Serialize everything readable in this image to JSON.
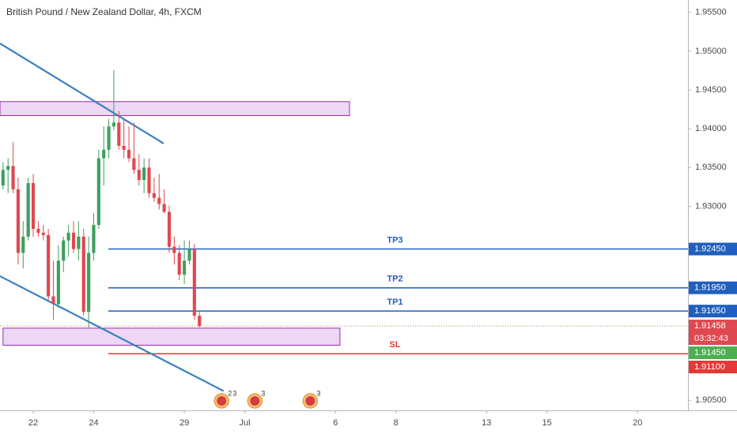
{
  "chart_data": {
    "type": "candlestick",
    "title": "British Pound / New Zealand Dollar, 4h, FXCM",
    "x": [
      -6,
      -5,
      -4,
      -3,
      -2,
      -1,
      0,
      1,
      2,
      3,
      4,
      5,
      6,
      7,
      8,
      9,
      10,
      11,
      12,
      13,
      14,
      15,
      16,
      17,
      18,
      19,
      20,
      21,
      22,
      23,
      24,
      25,
      26,
      27,
      28,
      29,
      30,
      31,
      32,
      33
    ],
    "open": [
      1.9327,
      1.9347,
      1.9352,
      1.9322,
      1.924,
      1.9261,
      1.933,
      1.9271,
      1.9266,
      1.9263,
      1.9184,
      1.9174,
      1.923,
      1.9256,
      1.9266,
      1.9245,
      1.9261,
      1.9164,
      1.924,
      1.9276,
      1.9362,
      1.9373,
      1.9403,
      1.9408,
      1.9378,
      1.9373,
      1.9362,
      1.9347,
      1.9334,
      1.935,
      1.9317,
      1.9311,
      1.9303,
      1.9293,
      1.9248,
      1.924,
      1.9212,
      1.923,
      1.9245,
      1.9159
    ],
    "high": [
      1.9357,
      1.9362,
      1.9383,
      1.9337,
      1.9281,
      1.9337,
      1.9342,
      1.9281,
      1.9276,
      1.9271,
      1.923,
      1.925,
      1.9261,
      1.9276,
      1.9281,
      1.9281,
      1.9271,
      1.9261,
      1.9291,
      1.9373,
      1.9403,
      1.9413,
      1.9476,
      1.9423,
      1.9413,
      1.9403,
      1.9408,
      1.9367,
      1.9362,
      1.9362,
      1.9337,
      1.9342,
      1.9322,
      1.9301,
      1.9261,
      1.925,
      1.9256,
      1.9256,
      1.9252,
      1.9164
    ],
    "low": [
      1.9322,
      1.9317,
      1.9317,
      1.9225,
      1.922,
      1.9256,
      1.9261,
      1.9261,
      1.9256,
      1.9179,
      1.9154,
      1.9169,
      1.9215,
      1.9235,
      1.924,
      1.923,
      1.9159,
      1.9144,
      1.923,
      1.9271,
      1.9327,
      1.9362,
      1.9398,
      1.9373,
      1.9362,
      1.9357,
      1.9342,
      1.9327,
      1.9317,
      1.9311,
      1.9306,
      1.9296,
      1.9291,
      1.924,
      1.9225,
      1.9205,
      1.92,
      1.9225,
      1.9154,
      1.9144
    ],
    "close": [
      1.9347,
      1.9352,
      1.9322,
      1.924,
      1.9261,
      1.933,
      1.9271,
      1.9266,
      1.9263,
      1.9184,
      1.9174,
      1.923,
      1.9256,
      1.9266,
      1.9245,
      1.9261,
      1.9164,
      1.924,
      1.9276,
      1.9362,
      1.9373,
      1.9403,
      1.9408,
      1.9378,
      1.9373,
      1.9362,
      1.9347,
      1.9334,
      1.935,
      1.9317,
      1.9311,
      1.9303,
      1.9293,
      1.9248,
      1.924,
      1.9212,
      1.923,
      1.9245,
      1.9159,
      1.91458
    ],
    "up_color": "#3f9f5d",
    "down_color": "#e0484f",
    "xlim": [
      -6.6,
      130
    ],
    "ylim": [
      1.9037,
      1.9566
    ],
    "xticks": [
      {
        "value": 0,
        "label": "22"
      },
      {
        "value": 12,
        "label": "24"
      },
      {
        "value": 30,
        "label": "29"
      },
      {
        "value": 42,
        "label": "Jul"
      },
      {
        "value": 60,
        "label": "6"
      },
      {
        "value": 72,
        "label": "8"
      },
      {
        "value": 90,
        "label": "13"
      },
      {
        "value": 102,
        "label": "15"
      },
      {
        "value": 120,
        "label": "20"
      }
    ],
    "yticks": [
      {
        "value": 1.955,
        "label": "1.95500"
      },
      {
        "value": 1.95,
        "label": "1.95000"
      },
      {
        "value": 1.945,
        "label": "1.94500"
      },
      {
        "value": 1.94,
        "label": "1.94000"
      },
      {
        "value": 1.935,
        "label": "1.93500"
      },
      {
        "value": 1.93,
        "label": "1.93000"
      },
      {
        "value": 1.905,
        "label": "1.90500"
      }
    ],
    "grid": false,
    "hlines": [
      {
        "name": "TP3",
        "value": 1.9245,
        "axis_label": "1.92450",
        "color": "#1f5fbf",
        "start": 14.9
      },
      {
        "name": "TP2",
        "value": 1.9195,
        "axis_label": "1.91950",
        "color": "#1f5fbf",
        "start": 14.9
      },
      {
        "name": "TP1",
        "value": 1.9165,
        "axis_label": "1.91650",
        "color": "#1f5fbf",
        "start": 14.9
      },
      {
        "name": "SL",
        "value": 1.911,
        "axis_label": "1.91100",
        "color": "#e53935",
        "start": 14.9
      }
    ],
    "last_price": {
      "value": 1.91458,
      "label": "1.91458",
      "color": "#e0484f",
      "countdown": "03:32:43"
    },
    "bid_price": {
      "value": 1.9145,
      "label": "1.91450",
      "color": "#4caf50"
    },
    "zones": [
      {
        "x": [
          -6.6,
          62.8
        ],
        "y": [
          1.9435,
          1.9417
        ],
        "color": "#d9a7e6"
      },
      {
        "x": [
          -6,
          60.9
        ],
        "y": [
          1.9143,
          1.9121
        ],
        "color": "#d9a7e6"
      }
    ],
    "trendlines": [
      {
        "x": [
          -6.6,
          25.9
        ],
        "y": [
          1.951,
          1.9381
        ],
        "color": "#3b7fc4"
      },
      {
        "x": [
          -6.6,
          37.8
        ],
        "y": [
          1.921,
          1.9062
        ],
        "color": "#3b7fc4"
      }
    ],
    "events": [
      {
        "x": 37.4,
        "labels": [
          "2",
          "3"
        ]
      },
      {
        "x": 44.0,
        "labels": [
          "3"
        ]
      },
      {
        "x": 55.0,
        "labels": [
          "3"
        ]
      }
    ]
  }
}
